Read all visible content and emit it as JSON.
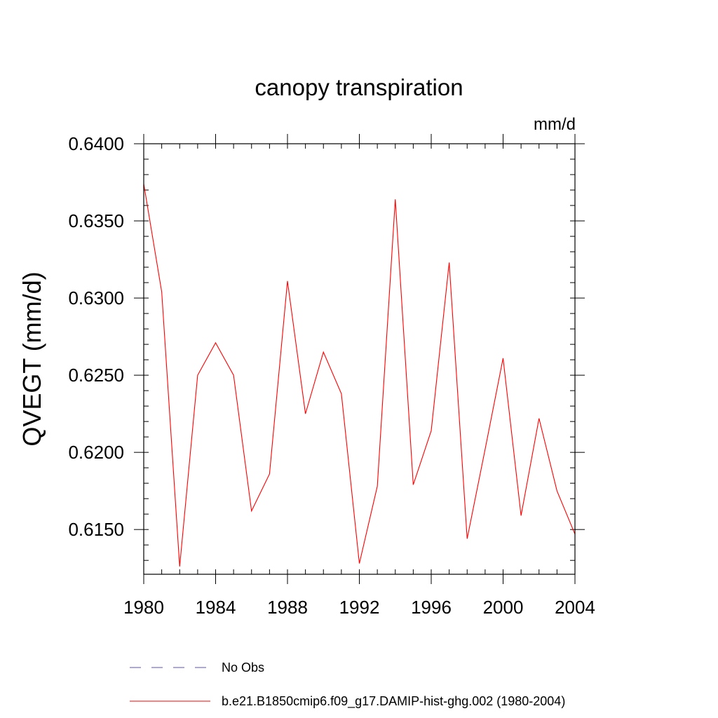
{
  "chart_data": {
    "type": "line",
    "title": "canopy transpiration",
    "units": "mm/d",
    "ylabel": "QVEGT  (mm/d)",
    "xlabel": "",
    "xlim": [
      1980,
      2004
    ],
    "ylim": [
      0.6121,
      0.64
    ],
    "xticks": [
      1980,
      1984,
      1988,
      1992,
      1996,
      2000,
      2004
    ],
    "xtick_labels": [
      "1980",
      "1984",
      "1988",
      "1992",
      "1996",
      "2000",
      "2004"
    ],
    "x_minor_step": 1,
    "yticks": [
      0.615,
      0.62,
      0.625,
      0.63,
      0.635,
      0.64
    ],
    "ytick_labels": [
      "0.6150",
      "0.6200",
      "0.6250",
      "0.6300",
      "0.6350",
      "0.6400"
    ],
    "y_minor_step": 0.001,
    "grid": false,
    "legend_position": "bottom",
    "series": [
      {
        "name": "No Obs",
        "color": "#5a4fbf",
        "dash": "dashed",
        "x": [],
        "y": []
      },
      {
        "name": "b.e21.B1850cmip6.f09_g17.DAMIP-hist-ghg.002 (1980-2004)",
        "color": "#ff0000",
        "dash": "solid",
        "x": [
          1980,
          1981,
          1982,
          1983,
          1984,
          1985,
          1986,
          1987,
          1988,
          1989,
          1990,
          1991,
          1992,
          1993,
          1994,
          1995,
          1996,
          1997,
          1998,
          1999,
          2000,
          2001,
          2002,
          2003,
          2004
        ],
        "y": [
          0.6374,
          0.6304,
          0.6126,
          0.625,
          0.6271,
          0.625,
          0.6162,
          0.6186,
          0.6311,
          0.6225,
          0.6265,
          0.6238,
          0.6128,
          0.6178,
          0.6364,
          0.6179,
          0.6214,
          0.6323,
          0.6144,
          0.6202,
          0.6261,
          0.6159,
          0.6222,
          0.6175,
          0.6147
        ]
      }
    ]
  }
}
